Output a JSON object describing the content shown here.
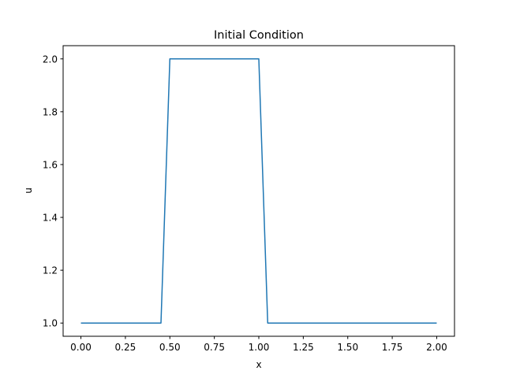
{
  "chart_data": {
    "type": "line",
    "title": "Initial Condition",
    "xlabel": "x",
    "ylabel": "u",
    "xlim": [
      -0.1,
      2.1
    ],
    "ylim": [
      0.95,
      2.05
    ],
    "xticks": [
      0.0,
      0.25,
      0.5,
      0.75,
      1.0,
      1.25,
      1.5,
      1.75,
      2.0
    ],
    "xtick_labels": [
      "0.00",
      "0.25",
      "0.50",
      "0.75",
      "1.00",
      "1.25",
      "1.50",
      "1.75",
      "2.00"
    ],
    "yticks": [
      1.0,
      1.2,
      1.4,
      1.6,
      1.8,
      2.0
    ],
    "ytick_labels": [
      "1.0",
      "1.2",
      "1.4",
      "1.6",
      "1.8",
      "2.0"
    ],
    "grid": false,
    "series": [
      {
        "color": "#1f77b4",
        "x": [
          0.0,
          0.45,
          0.5,
          1.0,
          1.05,
          2.0
        ],
        "y": [
          1.0,
          1.0,
          2.0,
          2.0,
          1.0,
          1.0
        ]
      }
    ]
  }
}
